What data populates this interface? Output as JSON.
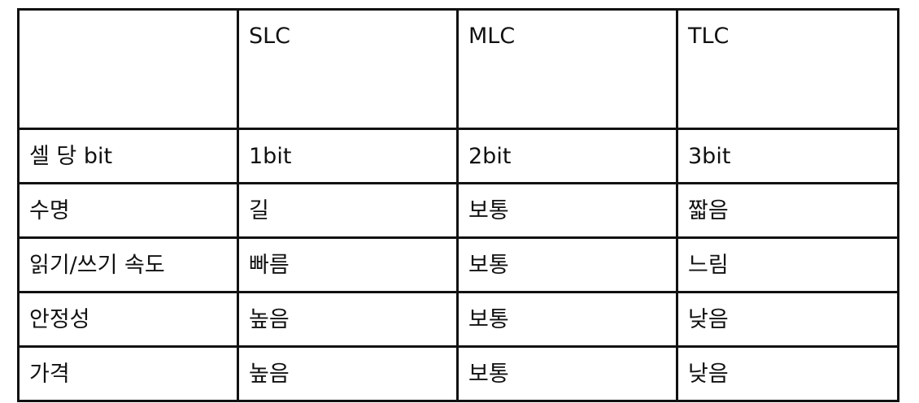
{
  "table": {
    "header": [
      "",
      "SLC",
      "MLC",
      "TLC"
    ],
    "rows": [
      [
        "셀 당 bit",
        "1bit",
        "2bit",
        "3bit"
      ],
      [
        "수명",
        "길",
        "보통",
        "짧음"
      ],
      [
        "읽기/쓰기 속도",
        "빠름",
        "보통",
        "느림"
      ],
      [
        "안정성",
        "높음",
        "보통",
        "낮음"
      ],
      [
        "가격",
        "높음",
        "보통",
        "낮음"
      ]
    ]
  }
}
